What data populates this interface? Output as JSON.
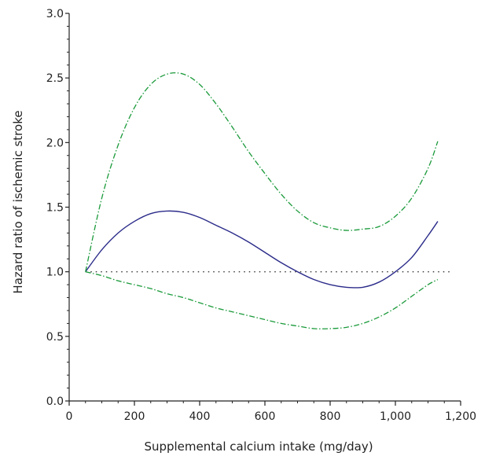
{
  "chart_data": {
    "type": "line",
    "xlabel": "Supplemental calcium intake (mg/day)",
    "ylabel": "Hazard ratio of ischemic stroke",
    "xlim": [
      0,
      1200
    ],
    "ylim": [
      0,
      3.0
    ],
    "x_ticks": [
      0,
      200,
      400,
      600,
      800,
      1000,
      1200
    ],
    "x_tick_labels": [
      "0",
      "200",
      "400",
      "600",
      "800",
      "1,000",
      "1,200"
    ],
    "y_ticks": [
      0,
      0.5,
      1.0,
      1.5,
      2.0,
      2.5,
      3.0
    ],
    "y_tick_labels": [
      "0.0",
      "0.5",
      "1.0",
      "1.5",
      "2.0",
      "2.5",
      "3.0"
    ],
    "reference_line": {
      "y": 1.0,
      "style": "dotted",
      "x_range": [
        50,
        1170
      ]
    },
    "grid": false,
    "series": [
      {
        "role": "estimate",
        "color": "#2b2b8a",
        "style": "solid",
        "x": [
          50,
          100,
          150,
          200,
          250,
          300,
          350,
          400,
          450,
          500,
          550,
          600,
          650,
          700,
          750,
          800,
          850,
          900,
          950,
          1000,
          1050,
          1100,
          1130
        ],
        "y": [
          1.0,
          1.17,
          1.3,
          1.39,
          1.45,
          1.47,
          1.46,
          1.42,
          1.36,
          1.3,
          1.23,
          1.15,
          1.07,
          1.0,
          0.94,
          0.9,
          0.88,
          0.88,
          0.92,
          1.0,
          1.11,
          1.28,
          1.39
        ]
      },
      {
        "role": "upper-ci",
        "color": "#1a9a3a",
        "style": "dash-dot",
        "x": [
          50,
          100,
          150,
          200,
          250,
          300,
          350,
          400,
          450,
          500,
          550,
          600,
          650,
          700,
          750,
          800,
          850,
          900,
          950,
          1000,
          1050,
          1100,
          1130
        ],
        "y": [
          1.0,
          1.57,
          1.98,
          2.27,
          2.45,
          2.53,
          2.53,
          2.45,
          2.3,
          2.12,
          1.93,
          1.76,
          1.6,
          1.47,
          1.38,
          1.34,
          1.32,
          1.33,
          1.35,
          1.43,
          1.57,
          1.8,
          2.01
        ]
      },
      {
        "role": "lower-ci",
        "color": "#1a9a3a",
        "style": "dash-dot",
        "x": [
          50,
          100,
          150,
          200,
          250,
          300,
          350,
          400,
          450,
          500,
          550,
          600,
          650,
          700,
          750,
          800,
          850,
          900,
          950,
          1000,
          1050,
          1100,
          1130
        ],
        "y": [
          1.0,
          0.97,
          0.93,
          0.9,
          0.87,
          0.83,
          0.8,
          0.76,
          0.72,
          0.69,
          0.66,
          0.63,
          0.6,
          0.58,
          0.56,
          0.56,
          0.57,
          0.6,
          0.65,
          0.72,
          0.81,
          0.9,
          0.94
        ]
      }
    ]
  }
}
